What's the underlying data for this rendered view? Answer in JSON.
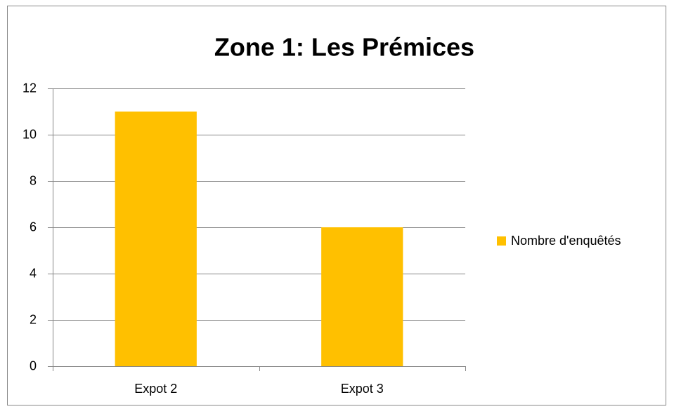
{
  "chart_data": {
    "type": "bar",
    "title": "Zone 1: Les Prémices",
    "categories": [
      "Expot 2",
      "Expot 3"
    ],
    "series": [
      {
        "name": "Nombre d'enquêtés",
        "color": "#ffc000",
        "values": [
          11,
          6
        ]
      }
    ],
    "ylim": [
      0,
      12
    ],
    "yticks": [
      0,
      2,
      4,
      6,
      8,
      10,
      12
    ],
    "grid": true,
    "legend": "right"
  }
}
